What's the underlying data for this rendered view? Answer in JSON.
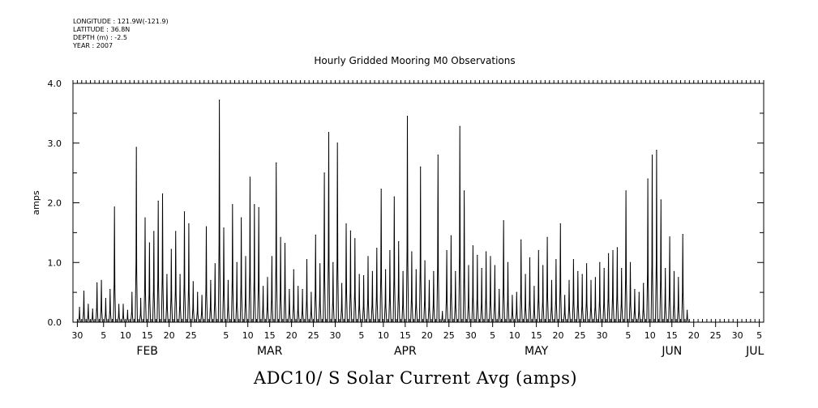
{
  "header": {
    "longitude": "LONGITUDE : 121.9W(-121.9)",
    "latitude": "LATITUDE : 36.8N",
    "depth": "DEPTH (m) : -2.5",
    "year": "YEAR : 2007"
  },
  "chart_data": {
    "type": "line",
    "title": "Hourly Gridded Mooring M0 Observations",
    "xlabel": "ADC10/ S Solar Current Avg (amps)",
    "ylabel": "amps",
    "ylim": [
      0.0,
      4.0
    ],
    "yticks": [
      "0.0",
      "1.0",
      "2.0",
      "3.0",
      "4.0"
    ],
    "x_tick_labels": [
      "30",
      "5",
      "10",
      "15",
      "20",
      "25",
      "5",
      "10",
      "15",
      "20",
      "25",
      "30",
      "5",
      "10",
      "15",
      "20",
      "25",
      "30",
      "5",
      "10",
      "15",
      "20",
      "25",
      "30",
      "5",
      "10",
      "15",
      "20",
      "25",
      "30",
      "5"
    ],
    "month_labels": [
      "FEB",
      "MAR",
      "APR",
      "MAY",
      "JUN",
      "JUL"
    ],
    "xlim": [
      "2007-01-29",
      "2007-07-06"
    ],
    "grid": false,
    "series": [
      {
        "unit": "amps",
        "daily_peaks": [
          [
            "2007-01-30",
            0.25
          ],
          [
            "2007-01-31",
            0.52
          ],
          [
            "2007-02-01",
            0.3
          ],
          [
            "2007-02-02",
            0.22
          ],
          [
            "2007-02-03",
            0.66
          ],
          [
            "2007-02-04",
            0.7
          ],
          [
            "2007-02-05",
            0.4
          ],
          [
            "2007-02-06",
            0.55
          ],
          [
            "2007-02-07",
            1.93
          ],
          [
            "2007-02-08",
            0.3
          ],
          [
            "2007-02-09",
            0.3
          ],
          [
            "2007-02-10",
            0.2
          ],
          [
            "2007-02-11",
            0.5
          ],
          [
            "2007-02-12",
            2.93
          ],
          [
            "2007-02-13",
            0.4
          ],
          [
            "2007-02-14",
            1.75
          ],
          [
            "2007-02-15",
            1.33
          ],
          [
            "2007-02-16",
            1.52
          ],
          [
            "2007-02-17",
            2.03
          ],
          [
            "2007-02-18",
            2.15
          ],
          [
            "2007-02-19",
            0.8
          ],
          [
            "2007-02-20",
            1.22
          ],
          [
            "2007-02-21",
            1.52
          ],
          [
            "2007-02-22",
            0.8
          ],
          [
            "2007-02-23",
            1.85
          ],
          [
            "2007-02-24",
            1.65
          ],
          [
            "2007-02-25",
            0.68
          ],
          [
            "2007-02-26",
            0.5
          ],
          [
            "2007-02-27",
            0.45
          ],
          [
            "2007-02-28",
            1.6
          ],
          [
            "2007-03-01",
            0.7
          ],
          [
            "2007-03-02",
            0.98
          ],
          [
            "2007-03-03",
            3.72
          ],
          [
            "2007-03-04",
            1.58
          ],
          [
            "2007-03-05",
            0.7
          ],
          [
            "2007-03-06",
            1.97
          ],
          [
            "2007-03-07",
            1.0
          ],
          [
            "2007-03-08",
            1.75
          ],
          [
            "2007-03-09",
            1.1
          ],
          [
            "2007-03-10",
            2.43
          ],
          [
            "2007-03-11",
            1.97
          ],
          [
            "2007-03-12",
            1.92
          ],
          [
            "2007-03-13",
            0.6
          ],
          [
            "2007-03-14",
            0.75
          ],
          [
            "2007-03-15",
            1.1
          ],
          [
            "2007-03-16",
            2.67
          ],
          [
            "2007-03-17",
            1.42
          ],
          [
            "2007-03-18",
            1.32
          ],
          [
            "2007-03-19",
            0.55
          ],
          [
            "2007-03-20",
            0.88
          ],
          [
            "2007-03-21",
            0.6
          ],
          [
            "2007-03-22",
            0.55
          ],
          [
            "2007-03-23",
            1.05
          ],
          [
            "2007-03-24",
            0.5
          ],
          [
            "2007-03-25",
            1.46
          ],
          [
            "2007-03-26",
            0.98
          ],
          [
            "2007-03-27",
            2.5
          ],
          [
            "2007-03-28",
            3.18
          ],
          [
            "2007-03-29",
            1.0
          ],
          [
            "2007-03-30",
            3.0
          ],
          [
            "2007-03-31",
            0.65
          ],
          [
            "2007-04-01",
            1.65
          ],
          [
            "2007-04-02",
            1.53
          ],
          [
            "2007-04-03",
            1.4
          ],
          [
            "2007-04-04",
            0.8
          ],
          [
            "2007-04-05",
            0.78
          ],
          [
            "2007-04-06",
            1.1
          ],
          [
            "2007-04-07",
            0.85
          ],
          [
            "2007-04-08",
            1.24
          ],
          [
            "2007-04-09",
            2.23
          ],
          [
            "2007-04-10",
            0.88
          ],
          [
            "2007-04-11",
            1.2
          ],
          [
            "2007-04-12",
            2.1
          ],
          [
            "2007-04-13",
            1.35
          ],
          [
            "2007-04-14",
            0.85
          ],
          [
            "2007-04-15",
            3.45
          ],
          [
            "2007-04-16",
            1.18
          ],
          [
            "2007-04-17",
            0.88
          ],
          [
            "2007-04-18",
            2.6
          ],
          [
            "2007-04-19",
            1.03
          ],
          [
            "2007-04-20",
            0.7
          ],
          [
            "2007-04-21",
            0.85
          ],
          [
            "2007-04-22",
            2.8
          ],
          [
            "2007-04-23",
            0.18
          ],
          [
            "2007-04-24",
            1.2
          ],
          [
            "2007-04-25",
            1.45
          ],
          [
            "2007-04-26",
            0.85
          ],
          [
            "2007-04-27",
            3.28
          ],
          [
            "2007-04-28",
            2.2
          ],
          [
            "2007-04-29",
            0.95
          ],
          [
            "2007-04-30",
            1.28
          ],
          [
            "2007-05-01",
            1.12
          ],
          [
            "2007-05-02",
            0.9
          ],
          [
            "2007-05-03",
            1.18
          ],
          [
            "2007-05-04",
            1.1
          ],
          [
            "2007-05-05",
            0.95
          ],
          [
            "2007-05-06",
            0.55
          ],
          [
            "2007-05-07",
            1.7
          ],
          [
            "2007-05-08",
            1.0
          ],
          [
            "2007-05-09",
            0.45
          ],
          [
            "2007-05-10",
            0.5
          ],
          [
            "2007-05-11",
            1.38
          ],
          [
            "2007-05-12",
            0.8
          ],
          [
            "2007-05-13",
            1.08
          ],
          [
            "2007-05-14",
            0.6
          ],
          [
            "2007-05-15",
            1.2
          ],
          [
            "2007-05-16",
            0.95
          ],
          [
            "2007-05-17",
            1.42
          ],
          [
            "2007-05-18",
            0.7
          ],
          [
            "2007-05-19",
            1.05
          ],
          [
            "2007-05-20",
            1.65
          ],
          [
            "2007-05-21",
            0.45
          ],
          [
            "2007-05-22",
            0.7
          ],
          [
            "2007-05-23",
            1.05
          ],
          [
            "2007-05-24",
            0.85
          ],
          [
            "2007-05-25",
            0.8
          ],
          [
            "2007-05-26",
            0.98
          ],
          [
            "2007-05-27",
            0.7
          ],
          [
            "2007-05-28",
            0.75
          ],
          [
            "2007-05-29",
            1.0
          ],
          [
            "2007-05-30",
            0.9
          ],
          [
            "2007-05-31",
            1.15
          ],
          [
            "2007-06-01",
            1.2
          ],
          [
            "2007-06-02",
            1.25
          ],
          [
            "2007-06-03",
            0.9
          ],
          [
            "2007-06-04",
            2.2
          ],
          [
            "2007-06-05",
            1.0
          ],
          [
            "2007-06-06",
            0.55
          ],
          [
            "2007-06-07",
            0.5
          ],
          [
            "2007-06-08",
            0.65
          ],
          [
            "2007-06-09",
            2.4
          ],
          [
            "2007-06-10",
            2.8
          ],
          [
            "2007-06-11",
            2.88
          ],
          [
            "2007-06-12",
            2.05
          ],
          [
            "2007-06-13",
            0.9
          ],
          [
            "2007-06-14",
            1.43
          ],
          [
            "2007-06-15",
            0.85
          ],
          [
            "2007-06-16",
            0.75
          ],
          [
            "2007-06-17",
            1.47
          ],
          [
            "2007-06-18",
            0.2
          ]
        ]
      }
    ]
  }
}
